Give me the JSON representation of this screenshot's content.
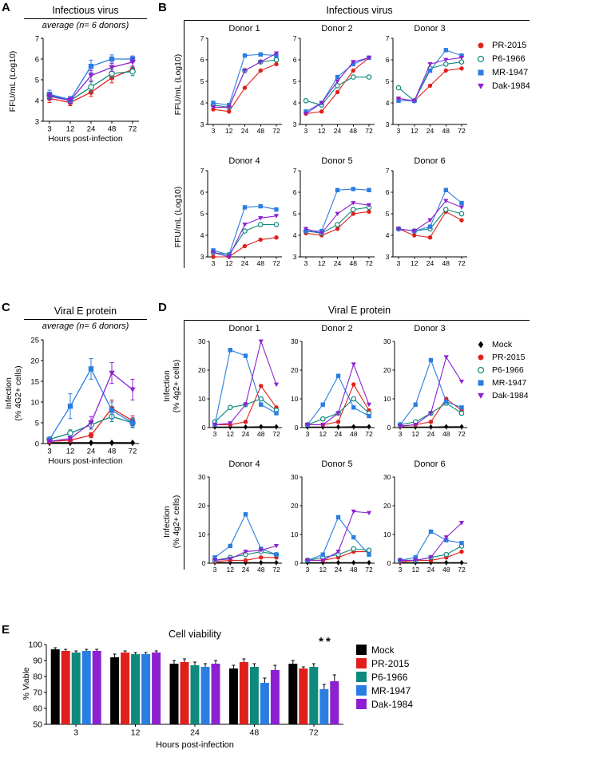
{
  "panels": {
    "a": {
      "label": "A"
    },
    "b": {
      "label": "B",
      "title": "Infectious virus"
    },
    "c": {
      "label": "C"
    },
    "d": {
      "label": "D",
      "title": "Viral E protein"
    },
    "e": {
      "label": "E"
    }
  },
  "series_styles": {
    "Mock": {
      "color": "#000000",
      "marker": "diamond",
      "open": false
    },
    "PR-2015": {
      "color": "#e0201c",
      "marker": "circle",
      "open": false
    },
    "P6-1966": {
      "color": "#0e8a7d",
      "marker": "circle",
      "open": true
    },
    "MR-1947": {
      "color": "#2a7de1",
      "marker": "square",
      "open": false
    },
    "Dak-1984": {
      "color": "#8d21d2",
      "marker": "triangle-down",
      "open": false
    }
  },
  "legends": {
    "b": [
      "PR-2015",
      "P6-1966",
      "MR-1947",
      "Dak-1984"
    ],
    "d": [
      "Mock",
      "PR-2015",
      "P6-1966",
      "MR-1947",
      "Dak-1984"
    ],
    "e": [
      "Mock",
      "PR-2015",
      "P6-1966",
      "MR-1947",
      "Dak-1984"
    ]
  },
  "chart_data": [
    {
      "id": "A",
      "type": "line",
      "title": "Infectious virus",
      "subtitle": "average (n= 6 donors)",
      "xlabel": "Hours post-infection",
      "ylabel": "FFU/mL (Log10)",
      "x": [
        3,
        12,
        24,
        48,
        72
      ],
      "ylim": [
        3,
        7
      ],
      "yticks": [
        3,
        4,
        5,
        6,
        7
      ],
      "series": [
        {
          "name": "PR-2015",
          "values": [
            4.1,
            3.9,
            4.4,
            5.1,
            5.5
          ],
          "errors": [
            0.2,
            0.15,
            0.2,
            0.25,
            0.15
          ]
        },
        {
          "name": "P6-1966",
          "values": [
            4.25,
            4.0,
            4.65,
            5.3,
            5.4
          ],
          "errors": [
            0.15,
            0.15,
            0.25,
            0.2,
            0.2
          ]
        },
        {
          "name": "MR-1947",
          "values": [
            4.3,
            4.05,
            5.65,
            6.0,
            6.0
          ],
          "errors": [
            0.2,
            0.15,
            0.3,
            0.2,
            0.15
          ]
        },
        {
          "name": "Dak-1984",
          "values": [
            4.2,
            4.0,
            5.2,
            5.6,
            5.85
          ],
          "errors": [
            0.15,
            0.15,
            0.25,
            0.2,
            0.2
          ]
        }
      ]
    },
    {
      "id": "B1",
      "type": "line",
      "title": "Donor 1",
      "ylabel": "FFU/mL (Log10)",
      "x": [
        3,
        12,
        24,
        48,
        72
      ],
      "ylim": [
        3,
        7
      ],
      "yticks": [
        3,
        4,
        5,
        6,
        7
      ],
      "series": [
        {
          "name": "PR-2015",
          "values": [
            3.7,
            3.6,
            4.7,
            5.5,
            5.8
          ]
        },
        {
          "name": "P6-1966",
          "values": [
            3.9,
            3.8,
            5.5,
            5.9,
            6.0
          ]
        },
        {
          "name": "MR-1947",
          "values": [
            4.0,
            3.9,
            6.2,
            6.25,
            6.2
          ]
        },
        {
          "name": "Dak-1984",
          "values": [
            3.8,
            3.8,
            5.5,
            5.9,
            6.3
          ]
        }
      ]
    },
    {
      "id": "B2",
      "type": "line",
      "title": "Donor 2",
      "x": [
        3,
        12,
        24,
        48,
        72
      ],
      "ylim": [
        3,
        7
      ],
      "yticks": [
        3,
        4,
        5,
        6,
        7
      ],
      "series": [
        {
          "name": "PR-2015",
          "values": [
            3.5,
            3.6,
            4.5,
            5.5,
            6.1
          ]
        },
        {
          "name": "P6-1966",
          "values": [
            4.1,
            3.9,
            4.8,
            5.2,
            5.2
          ]
        },
        {
          "name": "MR-1947",
          "values": [
            3.6,
            4.0,
            5.2,
            5.8,
            6.1
          ]
        },
        {
          "name": "Dak-1984",
          "values": [
            3.5,
            4.0,
            5.0,
            5.9,
            6.1
          ]
        }
      ]
    },
    {
      "id": "B3",
      "type": "line",
      "title": "Donor 3",
      "x": [
        3,
        12,
        24,
        48,
        72
      ],
      "ylim": [
        3,
        7
      ],
      "yticks": [
        3,
        4,
        5,
        6,
        7
      ],
      "series": [
        {
          "name": "PR-2015",
          "values": [
            4.2,
            4.1,
            4.8,
            5.5,
            5.6
          ]
        },
        {
          "name": "P6-1966",
          "values": [
            4.7,
            4.1,
            5.6,
            5.8,
            5.9
          ]
        },
        {
          "name": "MR-1947",
          "values": [
            4.1,
            4.1,
            5.5,
            6.45,
            6.2
          ]
        },
        {
          "name": "Dak-1984",
          "values": [
            4.2,
            4.1,
            5.8,
            6.0,
            6.1
          ]
        }
      ]
    },
    {
      "id": "B4",
      "type": "line",
      "title": "Donor 4",
      "ylabel": "FFU/mL (Log10)",
      "x": [
        3,
        12,
        24,
        48,
        72
      ],
      "ylim": [
        3,
        7
      ],
      "yticks": [
        3,
        4,
        5,
        6,
        7
      ],
      "series": [
        {
          "name": "PR-2015",
          "values": [
            3.0,
            3.0,
            3.5,
            3.8,
            3.9
          ]
        },
        {
          "name": "P6-1966",
          "values": [
            3.2,
            3.1,
            4.2,
            4.5,
            4.5
          ]
        },
        {
          "name": "MR-1947",
          "values": [
            3.3,
            3.1,
            5.3,
            5.35,
            5.2
          ]
        },
        {
          "name": "Dak-1984",
          "values": [
            3.2,
            3.0,
            4.5,
            4.8,
            4.9
          ]
        }
      ]
    },
    {
      "id": "B5",
      "type": "line",
      "title": "Donor 5",
      "x": [
        3,
        12,
        24,
        48,
        72
      ],
      "ylim": [
        3,
        7
      ],
      "yticks": [
        3,
        4,
        5,
        6,
        7
      ],
      "series": [
        {
          "name": "PR-2015",
          "values": [
            4.1,
            4.0,
            4.3,
            5.0,
            5.1
          ]
        },
        {
          "name": "P6-1966",
          "values": [
            4.2,
            4.1,
            4.5,
            5.2,
            5.3
          ]
        },
        {
          "name": "MR-1947",
          "values": [
            4.2,
            4.2,
            6.1,
            6.15,
            6.1
          ]
        },
        {
          "name": "Dak-1984",
          "values": [
            4.3,
            4.1,
            5.0,
            5.5,
            5.4
          ]
        }
      ]
    },
    {
      "id": "B6",
      "type": "line",
      "title": "Donor 6",
      "x": [
        3,
        12,
        24,
        48,
        72
      ],
      "ylim": [
        3,
        7
      ],
      "yticks": [
        3,
        4,
        5,
        6,
        7
      ],
      "series": [
        {
          "name": "PR-2015",
          "values": [
            4.3,
            4.0,
            3.9,
            5.1,
            4.7
          ]
        },
        {
          "name": "P6-1966",
          "values": [
            4.3,
            4.2,
            4.3,
            5.2,
            5.0
          ]
        },
        {
          "name": "MR-1947",
          "values": [
            4.3,
            4.2,
            4.4,
            6.1,
            5.5
          ]
        },
        {
          "name": "Dak-1984",
          "values": [
            4.3,
            4.2,
            4.7,
            5.6,
            5.3
          ]
        }
      ]
    },
    {
      "id": "C",
      "type": "line",
      "title": "Viral E protein",
      "subtitle": "average (n= 6 donors)",
      "xlabel": "Hours post-infection",
      "ylabel": "Infection (% 4G2+ cells)",
      "ylabel_lines": [
        "Infection",
        "(% 4G2+ cells)"
      ],
      "x": [
        3,
        12,
        24,
        48,
        72
      ],
      "ylim": [
        0,
        25
      ],
      "yticks": [
        0,
        5,
        10,
        15,
        20,
        25
      ],
      "series": [
        {
          "name": "Mock",
          "values": [
            0.2,
            0.2,
            0.2,
            0.2,
            0.2
          ],
          "errors": [
            0,
            0,
            0,
            0,
            0
          ]
        },
        {
          "name": "PR-2015",
          "values": [
            0.5,
            0.8,
            2.0,
            8.5,
            5.5
          ],
          "errors": [
            0.2,
            0.3,
            0.6,
            2.0,
            1.2
          ]
        },
        {
          "name": "P6-1966",
          "values": [
            1.0,
            2.5,
            4.5,
            6.5,
            5.0
          ],
          "errors": [
            0.3,
            0.8,
            1.0,
            1.2,
            1.0
          ]
        },
        {
          "name": "MR-1947",
          "values": [
            1.0,
            9.0,
            18.0,
            8.0,
            5.0
          ],
          "errors": [
            0.4,
            3.0,
            2.5,
            2.0,
            1.2
          ]
        },
        {
          "name": "Dak-1984",
          "values": [
            0.5,
            1.2,
            5.0,
            17.0,
            13.0
          ],
          "errors": [
            0.2,
            0.4,
            1.5,
            2.5,
            2.5
          ]
        }
      ]
    },
    {
      "id": "D1",
      "type": "line",
      "title": "Donor 1",
      "ylabel": "Infection (% 4g2+ cells)",
      "ylabel_lines": [
        "Infection",
        "(% 4g2+ cells)"
      ],
      "x": [
        3,
        12,
        24,
        48,
        72
      ],
      "ylim": [
        0,
        30
      ],
      "yticks": [
        0,
        10,
        20,
        30
      ],
      "series": [
        {
          "name": "Mock",
          "values": [
            0.2,
            0.2,
            0.2,
            0.3,
            0.3
          ]
        },
        {
          "name": "PR-2015",
          "values": [
            1,
            1,
            2,
            14.5,
            7
          ]
        },
        {
          "name": "P6-1966",
          "values": [
            2,
            7,
            8,
            10,
            6
          ]
        },
        {
          "name": "MR-1947",
          "values": [
            1,
            27,
            25,
            8,
            5
          ]
        },
        {
          "name": "Dak-1984",
          "values": [
            1,
            1.5,
            8,
            30,
            15
          ]
        }
      ]
    },
    {
      "id": "D2",
      "type": "line",
      "title": "Donor 2",
      "x": [
        3,
        12,
        24,
        48,
        72
      ],
      "ylim": [
        0,
        30
      ],
      "yticks": [
        0,
        10,
        20,
        30
      ],
      "series": [
        {
          "name": "Mock",
          "values": [
            0.2,
            0.2,
            0.2,
            0.3,
            0.3
          ]
        },
        {
          "name": "PR-2015",
          "values": [
            1,
            1,
            2,
            15,
            6
          ]
        },
        {
          "name": "P6-1966",
          "values": [
            1,
            3,
            5,
            10,
            5
          ]
        },
        {
          "name": "MR-1947",
          "values": [
            1,
            8,
            18,
            7,
            4
          ]
        },
        {
          "name": "Dak-1984",
          "values": [
            1,
            1,
            5,
            22,
            8
          ]
        }
      ]
    },
    {
      "id": "D3",
      "type": "line",
      "title": "Donor 3",
      "x": [
        3,
        12,
        24,
        48,
        72
      ],
      "ylim": [
        0,
        30
      ],
      "yticks": [
        0,
        10,
        20,
        30
      ],
      "series": [
        {
          "name": "Mock",
          "values": [
            0.2,
            0.2,
            0.2,
            0.3,
            0.3
          ]
        },
        {
          "name": "PR-2015",
          "values": [
            0.5,
            1,
            2,
            10,
            6
          ]
        },
        {
          "name": "P6-1966",
          "values": [
            1,
            2,
            5,
            8.5,
            5
          ]
        },
        {
          "name": "MR-1947",
          "values": [
            1,
            8,
            23.5,
            9,
            7
          ]
        },
        {
          "name": "Dak-1984",
          "values": [
            0.5,
            1,
            5,
            24.5,
            16
          ]
        }
      ]
    },
    {
      "id": "D4",
      "type": "line",
      "title": "Donor 4",
      "ylabel": "Infection (% 4g2+ cells)",
      "ylabel_lines": [
        "Infection",
        "(% 4g2+ cells)"
      ],
      "x": [
        3,
        12,
        24,
        48,
        72
      ],
      "ylim": [
        0,
        30
      ],
      "yticks": [
        0,
        10,
        20,
        30
      ],
      "series": [
        {
          "name": "Mock",
          "values": [
            0.2,
            0.2,
            0.2,
            0.2,
            0.2
          ]
        },
        {
          "name": "PR-2015",
          "values": [
            0.5,
            1,
            1,
            2,
            2
          ]
        },
        {
          "name": "P6-1966",
          "values": [
            1,
            2,
            3,
            4,
            3
          ]
        },
        {
          "name": "MR-1947",
          "values": [
            2,
            6,
            17,
            5,
            3
          ]
        },
        {
          "name": "Dak-1984",
          "values": [
            1,
            1.5,
            4,
            4.5,
            6
          ]
        }
      ]
    },
    {
      "id": "D5",
      "type": "line",
      "title": "Donor 5",
      "x": [
        3,
        12,
        24,
        48,
        72
      ],
      "ylim": [
        0,
        30
      ],
      "yticks": [
        0,
        10,
        20,
        30
      ],
      "series": [
        {
          "name": "Mock",
          "values": [
            0.2,
            0.2,
            0.2,
            0.2,
            0.2
          ]
        },
        {
          "name": "PR-2015",
          "values": [
            1,
            1,
            2,
            4,
            4
          ]
        },
        {
          "name": "P6-1966",
          "values": [
            1,
            2,
            3,
            5,
            4.5
          ]
        },
        {
          "name": "MR-1947",
          "values": [
            1,
            3,
            16,
            9,
            3
          ]
        },
        {
          "name": "Dak-1984",
          "values": [
            1,
            1,
            4,
            18,
            17.5
          ]
        }
      ]
    },
    {
      "id": "D6",
      "type": "line",
      "title": "Donor 6",
      "x": [
        3,
        12,
        24,
        48,
        72
      ],
      "ylim": [
        0,
        30
      ],
      "yticks": [
        0,
        10,
        20,
        30
      ],
      "series": [
        {
          "name": "Mock",
          "values": [
            0.2,
            0.2,
            0.2,
            0.2,
            0.2
          ]
        },
        {
          "name": "PR-2015",
          "values": [
            0.5,
            1,
            1,
            2,
            4
          ]
        },
        {
          "name": "P6-1966",
          "values": [
            1,
            1,
            2,
            3,
            6
          ]
        },
        {
          "name": "MR-1947",
          "values": [
            1,
            2,
            11,
            8,
            7
          ]
        },
        {
          "name": "Dak-1984",
          "values": [
            1,
            1,
            2,
            9,
            14
          ]
        }
      ]
    },
    {
      "id": "E",
      "type": "bar",
      "title": "Cell viability",
      "xlabel": "Hours post-infection",
      "ylabel": "% Viable",
      "categories": [
        3,
        12,
        24,
        48,
        72
      ],
      "ylim": [
        50,
        100
      ],
      "yticks": [
        50,
        60,
        70,
        80,
        90,
        100
      ],
      "significance": "**",
      "series": [
        {
          "name": "Mock",
          "values": [
            97,
            92,
            88,
            85,
            88
          ],
          "errors": [
            1,
            2,
            2,
            2,
            2
          ]
        },
        {
          "name": "PR-2015",
          "values": [
            96,
            95,
            89,
            89,
            85
          ],
          "errors": [
            1,
            1,
            2,
            2,
            1
          ]
        },
        {
          "name": "P6-1966",
          "values": [
            95,
            94,
            87,
            86,
            86
          ],
          "errors": [
            1,
            1,
            2,
            2,
            2
          ]
        },
        {
          "name": "MR-1947",
          "values": [
            96,
            94,
            86,
            76,
            72
          ],
          "errors": [
            1,
            1,
            2,
            3,
            3
          ]
        },
        {
          "name": "Dak-1984",
          "values": [
            96,
            95,
            88,
            84,
            77
          ],
          "errors": [
            1,
            1,
            2,
            3,
            4
          ]
        }
      ]
    }
  ]
}
